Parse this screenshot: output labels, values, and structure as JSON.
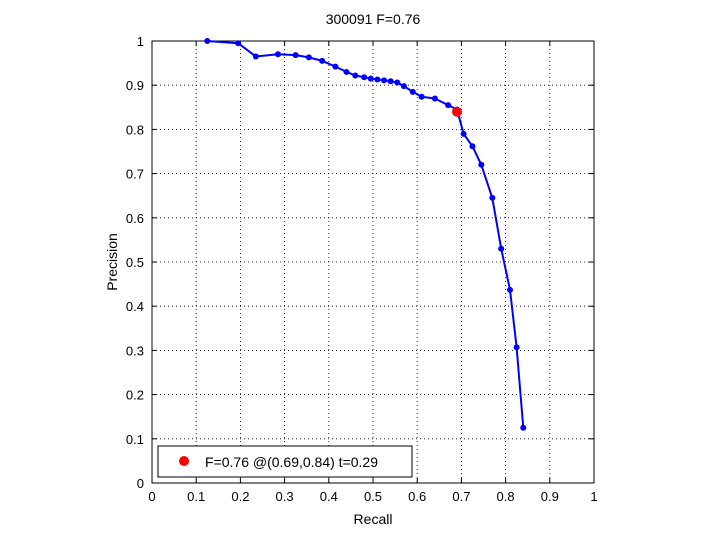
{
  "chart_data": {
    "type": "line",
    "title": "300091 F=0.76",
    "xlabel": "Recall",
    "ylabel": "Precision",
    "xlim": [
      0,
      1
    ],
    "ylim": [
      0,
      1
    ],
    "xticks": [
      "0",
      "0.1",
      "0.2",
      "0.3",
      "0.4",
      "0.5",
      "0.6",
      "0.7",
      "0.8",
      "0.9",
      "1"
    ],
    "yticks": [
      "0",
      "0.1",
      "0.2",
      "0.3",
      "0.4",
      "0.5",
      "0.6",
      "0.7",
      "0.8",
      "0.9",
      "1"
    ],
    "grid": true,
    "series": [
      {
        "color": "#0000ff",
        "marker": "dot",
        "points": [
          [
            0.125,
            1.0
          ],
          [
            0.195,
            0.995
          ],
          [
            0.235,
            0.965
          ],
          [
            0.285,
            0.97
          ],
          [
            0.325,
            0.968
          ],
          [
            0.355,
            0.963
          ],
          [
            0.385,
            0.955
          ],
          [
            0.415,
            0.942
          ],
          [
            0.44,
            0.93
          ],
          [
            0.46,
            0.922
          ],
          [
            0.48,
            0.918
          ],
          [
            0.495,
            0.915
          ],
          [
            0.51,
            0.913
          ],
          [
            0.525,
            0.911
          ],
          [
            0.54,
            0.909
          ],
          [
            0.555,
            0.906
          ],
          [
            0.57,
            0.898
          ],
          [
            0.59,
            0.885
          ],
          [
            0.61,
            0.874
          ],
          [
            0.64,
            0.87
          ],
          [
            0.67,
            0.855
          ],
          [
            0.69,
            0.845
          ],
          [
            0.705,
            0.79
          ],
          [
            0.725,
            0.762
          ],
          [
            0.745,
            0.72
          ],
          [
            0.77,
            0.645
          ],
          [
            0.79,
            0.53
          ],
          [
            0.81,
            0.437
          ],
          [
            0.825,
            0.307
          ],
          [
            0.84,
            0.125
          ]
        ]
      }
    ],
    "highlight": {
      "x": 0.69,
      "y": 0.84,
      "color": "#ff0000",
      "legend": "F=0.76 @(0.69,0.84) t=0.29"
    },
    "legend_position": "bottom-left"
  }
}
